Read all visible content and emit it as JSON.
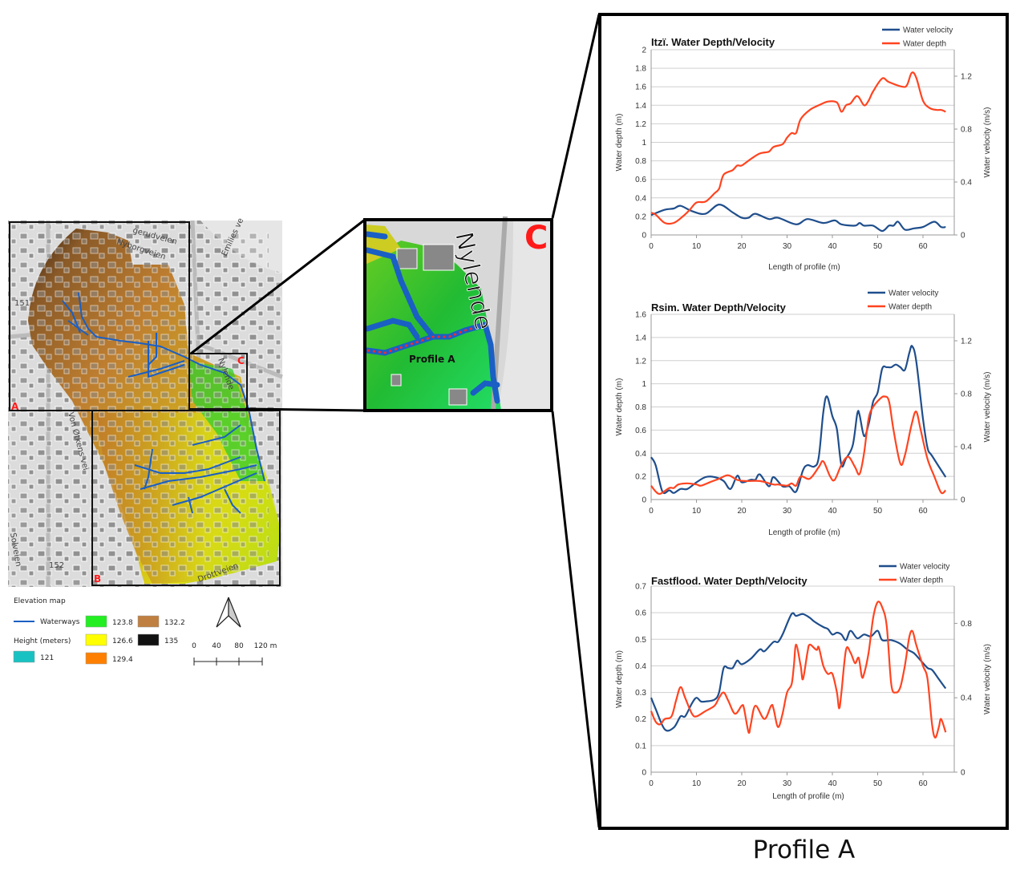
{
  "map": {
    "box_labels": {
      "a": "A",
      "b": "B",
      "c": "C"
    },
    "streets": {
      "gerudveien": "gerudveien",
      "nyborgveien": "Nyborgveien",
      "emilies": "Emilies ve",
      "nylende": "Nylende",
      "von_otkens": "Von Øtkens vei",
      "solveien": "Solveien",
      "drottveien": "Drottveien",
      "marker_151": "151",
      "marker_152": "152"
    },
    "inset": {
      "label": "C",
      "street": "Nylende",
      "profile_label": "Profile A"
    }
  },
  "legend": {
    "title": "Elevation map",
    "waterways": "Waterways",
    "height_title": "Height (meters)",
    "classes": [
      {
        "value": "121",
        "color": "#19c2c2"
      },
      {
        "value": "123.8",
        "color": "#22ee22"
      },
      {
        "value": "126.6",
        "color": "#ffff00"
      },
      {
        "value": "129.4",
        "color": "#ff8000"
      },
      {
        "value": "132.2",
        "color": "#bf7f40"
      },
      {
        "value": "135",
        "color": "#111111"
      }
    ],
    "waterway_color": "#1a5fc4",
    "scale_ticks": [
      "0",
      "40",
      "80",
      "120 m"
    ]
  },
  "caption": "Profile A",
  "chart_data": [
    {
      "type": "line",
      "title": "Itzï. Water Depth/Velocity",
      "xlabel": "Length of profile (m)",
      "ylabel": "Water depth (m)",
      "y2label": "Water velocity (m/s)",
      "xlim": [
        0,
        65
      ],
      "ylim": [
        0,
        2
      ],
      "y2lim": [
        0,
        1.4
      ],
      "xticks": [
        "0",
        "10",
        "20",
        "30",
        "40",
        "50",
        "60"
      ],
      "yticks": [
        "0",
        "0.2",
        "0.4",
        "0.6",
        "0.8",
        "1",
        "1.2",
        "1.4",
        "1.6",
        "1.8",
        "2"
      ],
      "y2ticks": [
        "0",
        "0.4",
        "0.8",
        "1.2"
      ],
      "legend": [
        "Water velocity",
        "Water depth"
      ],
      "grid": true,
      "legend_position": "top-right",
      "series": [
        {
          "name": "Water velocity",
          "axis": "right",
          "color": "#1f4e8c",
          "x": [
            0,
            3,
            5,
            6.5,
            9,
            12,
            15,
            18,
            20,
            21.5,
            23,
            26,
            28,
            32,
            34.5,
            38,
            40.5,
            42,
            45,
            46,
            47,
            49,
            51,
            52.5,
            53.5,
            54.5,
            56,
            58,
            60,
            62.5,
            64,
            65
          ],
          "y": [
            0.15,
            0.19,
            0.2,
            0.22,
            0.18,
            0.16,
            0.23,
            0.17,
            0.13,
            0.13,
            0.16,
            0.12,
            0.13,
            0.08,
            0.12,
            0.09,
            0.11,
            0.08,
            0.07,
            0.09,
            0.07,
            0.07,
            0.03,
            0.07,
            0.07,
            0.1,
            0.04,
            0.05,
            0.06,
            0.1,
            0.06,
            0.06
          ]
        },
        {
          "name": "Water depth",
          "axis": "left",
          "color": "#ff4420",
          "x": [
            0,
            1,
            3,
            5,
            7,
            8.5,
            10,
            12,
            14,
            15,
            16,
            18,
            19,
            20,
            22,
            24,
            26,
            27,
            29,
            30,
            31,
            32,
            33,
            35,
            37,
            39,
            41,
            42,
            43,
            44,
            45.5,
            47,
            48,
            49,
            51,
            52.5,
            55.5,
            56.5,
            57.5,
            58.5,
            60,
            61.5,
            63,
            64,
            65
          ],
          "y": [
            0.24,
            0.22,
            0.13,
            0.13,
            0.2,
            0.27,
            0.35,
            0.36,
            0.45,
            0.5,
            0.65,
            0.7,
            0.75,
            0.75,
            0.82,
            0.88,
            0.9,
            0.95,
            0.98,
            1.05,
            1.1,
            1.1,
            1.25,
            1.35,
            1.4,
            1.44,
            1.43,
            1.33,
            1.4,
            1.42,
            1.5,
            1.4,
            1.45,
            1.55,
            1.69,
            1.65,
            1.6,
            1.62,
            1.75,
            1.7,
            1.45,
            1.37,
            1.35,
            1.35,
            1.33
          ]
        }
      ]
    },
    {
      "type": "line",
      "title": "Rsim. Water Depth/Velocity",
      "xlabel": "Length of profile (m)",
      "ylabel": "Water depth (m)",
      "y2label": "Water velocity (m/s)",
      "xlim": [
        0,
        65
      ],
      "ylim": [
        0,
        1.6
      ],
      "y2lim": [
        0,
        1.4
      ],
      "xticks": [
        "0",
        "10",
        "20",
        "30",
        "40",
        "50",
        "60"
      ],
      "yticks": [
        "0",
        "0.2",
        "0.4",
        "0.6",
        "0.8",
        "1",
        "1.2",
        "1.4",
        "1.6"
      ],
      "y2ticks": [
        "0",
        "0.4",
        "0.8",
        "1.2"
      ],
      "legend": [
        "Water velocity",
        "Water depth"
      ],
      "grid": true,
      "legend_position": "top-right",
      "series": [
        {
          "name": "Water velocity",
          "axis": "right",
          "color": "#1f4e8c",
          "x": [
            0,
            1,
            2.5,
            4,
            5,
            6.5,
            8,
            10,
            12,
            14,
            16,
            17.5,
            19,
            20,
            22,
            23,
            24,
            26,
            27,
            29,
            30.5,
            32,
            33.5,
            34.5,
            36,
            37,
            38,
            38.8,
            40,
            41,
            42,
            43,
            44.5,
            45.5,
            46,
            47,
            48,
            49,
            50,
            51,
            52,
            53,
            54,
            55,
            56,
            57,
            57.6,
            58.5,
            60,
            61,
            62,
            65
          ],
          "y": [
            0.32,
            0.26,
            0.06,
            0.07,
            0.05,
            0.08,
            0.08,
            0.13,
            0.17,
            0.17,
            0.14,
            0.08,
            0.18,
            0.13,
            0.15,
            0.15,
            0.19,
            0.1,
            0.17,
            0.1,
            0.1,
            0.06,
            0.22,
            0.26,
            0.25,
            0.32,
            0.66,
            0.78,
            0.63,
            0.53,
            0.26,
            0.31,
            0.41,
            0.65,
            0.64,
            0.48,
            0.57,
            0.74,
            0.81,
            0.99,
            1.0,
            1.0,
            1.02,
            1.0,
            0.98,
            1.11,
            1.16,
            1.05,
            0.61,
            0.39,
            0.33,
            0.17
          ]
        },
        {
          "name": "Water depth",
          "axis": "left",
          "color": "#ff4420",
          "x": [
            0,
            1,
            2,
            4,
            5,
            6,
            8,
            10,
            11,
            13,
            15,
            17,
            19,
            21,
            24,
            27,
            28,
            30,
            31,
            32,
            33,
            35,
            37,
            38,
            39.5,
            40.5,
            42,
            43.5,
            45,
            46,
            47,
            48,
            49,
            50.5,
            51.5,
            52.5,
            53.5,
            55,
            56,
            57.5,
            58.5,
            59.5,
            61,
            62.5,
            64,
            65
          ],
          "y": [
            0.12,
            0.07,
            0.05,
            0.1,
            0.1,
            0.13,
            0.14,
            0.13,
            0.12,
            0.15,
            0.18,
            0.21,
            0.17,
            0.16,
            0.16,
            0.13,
            0.13,
            0.12,
            0.14,
            0.12,
            0.2,
            0.18,
            0.28,
            0.33,
            0.2,
            0.17,
            0.3,
            0.37,
            0.28,
            0.22,
            0.4,
            0.7,
            0.8,
            0.87,
            0.89,
            0.85,
            0.6,
            0.31,
            0.38,
            0.65,
            0.76,
            0.6,
            0.35,
            0.2,
            0.06,
            0.08
          ]
        }
      ]
    },
    {
      "type": "line",
      "title": "Fastflood. Water Depth/Velocity",
      "xlabel": "Length of profile (m)",
      "ylabel": "Water depth (m)",
      "y2label": "Water velocity (m/s)",
      "xlim": [
        0,
        65
      ],
      "ylim": [
        0,
        0.7
      ],
      "y2lim": [
        0,
        1.0
      ],
      "xticks": [
        "0",
        "10",
        "20",
        "30",
        "40",
        "50",
        "60"
      ],
      "yticks": [
        "0",
        "0.1",
        "0.2",
        "0.3",
        "0.4",
        "0.5",
        "0.6",
        "0.7"
      ],
      "y2ticks": [
        "0",
        "0.4",
        "0.8"
      ],
      "legend": [
        "Water velocity",
        "Water depth"
      ],
      "grid": true,
      "legend_position": "top-right",
      "series": [
        {
          "name": "Water velocity",
          "axis": "right",
          "color": "#1f4e8c",
          "x": [
            0,
            1,
            3,
            5,
            6.5,
            7.5,
            9,
            10,
            11,
            12,
            14,
            15,
            16,
            17,
            18,
            19,
            20,
            22,
            24,
            25,
            27,
            28,
            29,
            31,
            32,
            33.5,
            35,
            36,
            38,
            39,
            40,
            41,
            42,
            43,
            44,
            45.5,
            47,
            48.5,
            50,
            51,
            53,
            55,
            56.5,
            58,
            59.5,
            61,
            62,
            63.5,
            65
          ],
          "y": [
            0.4,
            0.34,
            0.23,
            0.24,
            0.3,
            0.3,
            0.37,
            0.4,
            0.38,
            0.38,
            0.39,
            0.43,
            0.56,
            0.56,
            0.56,
            0.6,
            0.58,
            0.61,
            0.66,
            0.65,
            0.7,
            0.7,
            0.74,
            0.85,
            0.84,
            0.85,
            0.83,
            0.81,
            0.78,
            0.77,
            0.74,
            0.75,
            0.74,
            0.71,
            0.76,
            0.72,
            0.74,
            0.73,
            0.76,
            0.71,
            0.71,
            0.69,
            0.66,
            0.64,
            0.6,
            0.56,
            0.55,
            0.5,
            0.45
          ]
        },
        {
          "name": "Water depth",
          "axis": "left",
          "color": "#ff4420",
          "x": [
            0,
            1,
            2,
            3,
            4.5,
            5.5,
            6.5,
            7.5,
            9,
            10,
            12,
            14,
            15,
            16,
            17,
            18.5,
            20,
            20.5,
            21.5,
            22,
            23,
            25,
            26.5,
            27,
            28,
            29,
            30,
            31,
            31.5,
            32,
            33,
            33.5,
            34.5,
            35,
            36.5,
            37,
            38,
            39,
            40,
            41,
            41.5,
            42,
            43,
            44,
            45,
            45.8,
            46.5,
            47,
            48,
            49,
            50,
            51,
            52,
            53,
            54,
            55,
            56,
            57,
            57.7,
            58.5,
            60,
            61,
            62,
            62.7,
            63.5,
            64,
            65
          ],
          "y": [
            0.23,
            0.19,
            0.18,
            0.2,
            0.21,
            0.27,
            0.32,
            0.28,
            0.22,
            0.21,
            0.23,
            0.25,
            0.28,
            0.3,
            0.27,
            0.22,
            0.25,
            0.24,
            0.15,
            0.18,
            0.25,
            0.2,
            0.25,
            0.24,
            0.17,
            0.22,
            0.3,
            0.33,
            0.4,
            0.48,
            0.4,
            0.35,
            0.45,
            0.48,
            0.46,
            0.47,
            0.4,
            0.37,
            0.37,
            0.3,
            0.24,
            0.3,
            0.46,
            0.45,
            0.41,
            0.43,
            0.36,
            0.37,
            0.45,
            0.58,
            0.64,
            0.62,
            0.55,
            0.33,
            0.3,
            0.32,
            0.4,
            0.51,
            0.53,
            0.48,
            0.4,
            0.35,
            0.18,
            0.13,
            0.17,
            0.2,
            0.15
          ]
        }
      ]
    }
  ]
}
